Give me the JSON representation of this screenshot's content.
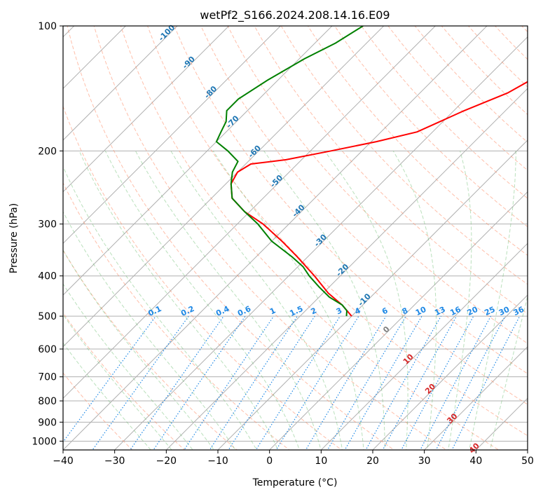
{
  "chart_data": {
    "type": "line",
    "title": "wetPf2_S166.2024.208.14.16.E09",
    "xlabel": "Temperature (°C)",
    "ylabel": "Pressure (hPa)",
    "xlim": [
      -40,
      50
    ],
    "ylim": [
      1050,
      100
    ],
    "y_scale": "log",
    "grid": true,
    "x_ticks": [
      -40,
      -30,
      -20,
      -10,
      0,
      10,
      20,
      30,
      40,
      50
    ],
    "x_tick_labels": [
      "−40",
      "−30",
      "−20",
      "−10",
      "0",
      "10",
      "20",
      "30",
      "40",
      "50"
    ],
    "y_ticks": [
      100,
      200,
      300,
      400,
      500,
      600,
      700,
      800,
      900,
      1000
    ],
    "y_tick_labels": [
      "100",
      "200",
      "300",
      "400",
      "500",
      "600",
      "700",
      "800",
      "900",
      "1000"
    ],
    "skew": 1.0,
    "series": [
      {
        "color": "#ff0000",
        "points": [
          [
            -10.5,
            100
          ],
          [
            -14,
            110
          ],
          [
            -17,
            120
          ],
          [
            -20,
            130
          ],
          [
            -23,
            145
          ],
          [
            -28,
            160
          ],
          [
            -33,
            180
          ],
          [
            -39,
            190
          ],
          [
            -46,
            200
          ],
          [
            -53,
            210
          ],
          [
            -59,
            215
          ],
          [
            -60,
            225
          ],
          [
            -59,
            240
          ],
          [
            -56,
            260
          ],
          [
            -51,
            280
          ],
          [
            -45,
            300
          ],
          [
            -38,
            330
          ],
          [
            -32,
            360
          ],
          [
            -25,
            400
          ],
          [
            -19,
            440
          ],
          [
            -14,
            470
          ],
          [
            -10,
            500
          ]
        ]
      },
      {
        "color": "#008000",
        "points": [
          [
            -64,
            100
          ],
          [
            -66,
            110
          ],
          [
            -69,
            120
          ],
          [
            -72,
            135
          ],
          [
            -74,
            150
          ],
          [
            -74,
            160
          ],
          [
            -72,
            170
          ],
          [
            -71,
            180
          ],
          [
            -70,
            190
          ],
          [
            -66,
            200
          ],
          [
            -62,
            212
          ],
          [
            -61,
            225
          ],
          [
            -59,
            240
          ],
          [
            -56,
            260
          ],
          [
            -51,
            280
          ],
          [
            -46,
            300
          ],
          [
            -40,
            330
          ],
          [
            -33,
            360
          ],
          [
            -29,
            380
          ],
          [
            -26,
            400
          ],
          [
            -22,
            425
          ],
          [
            -18,
            450
          ],
          [
            -14,
            470
          ],
          [
            -12,
            485
          ],
          [
            -11,
            500
          ]
        ]
      }
    ],
    "isotherm_labels": [
      "-100",
      "-90",
      "-80",
      "-70",
      "-60",
      "-50",
      "-40",
      "-30",
      "-20",
      "-10",
      "0",
      "10",
      "20",
      "30",
      "40"
    ],
    "mixing_ratio_labels": [
      "0.1",
      "0.2",
      "0.4",
      "0.6",
      "1",
      "1.5",
      "2",
      "3",
      "4",
      "6",
      "8",
      "10",
      "13",
      "16",
      "20",
      "25",
      "30",
      "36"
    ],
    "mixing_ratio_values": [
      0.1,
      0.2,
      0.4,
      0.6,
      1,
      1.5,
      2,
      3,
      4,
      6,
      8,
      10,
      13,
      16,
      20,
      25,
      30,
      36
    ],
    "colors": {
      "isotherm_label_cold": "#1f77b4",
      "isotherm_label_zero": "#808080",
      "isotherm_label_warm": "#d62728",
      "mixing_ratio": "#1e88e5",
      "dry_adiabat": "#ff8a65",
      "moist_adiabat": "#66bb6a",
      "grid": "#b0b0b0",
      "wide_curve": "#d2b48c"
    }
  }
}
